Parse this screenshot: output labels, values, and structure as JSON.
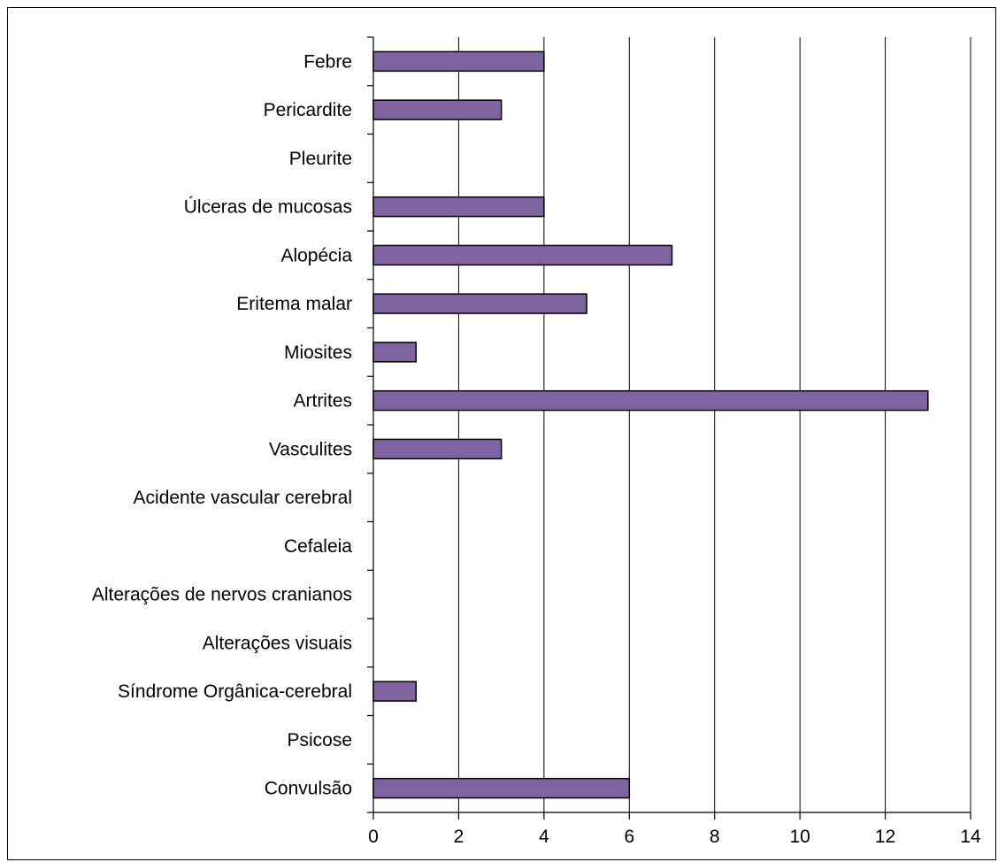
{
  "chart_data": {
    "type": "bar",
    "orientation": "horizontal",
    "categories": [
      "Febre",
      "Pericardite",
      "Pleurite",
      "Úlceras de mucosas",
      "Alopécia",
      "Eritema malar",
      "Miosites",
      "Artrites",
      "Vasculites",
      "Acidente vascular cerebral",
      "Cefaleia",
      "Alterações de nervos cranianos",
      "Alterações visuais",
      "Síndrome Orgânica-cerebral",
      "Psicose",
      "Convulsão"
    ],
    "values": [
      4,
      3,
      0,
      4,
      7,
      5,
      1,
      13,
      3,
      0,
      0,
      0,
      0,
      1,
      0,
      6
    ],
    "xlim": [
      0,
      14
    ],
    "xticks": [
      0,
      2,
      4,
      6,
      8,
      10,
      12,
      14
    ],
    "xtick_labels": [
      "0",
      "2",
      "4",
      "6",
      "8",
      "10",
      "12",
      "14"
    ],
    "title": "",
    "xlabel": "",
    "ylabel": "",
    "grid": "vertical",
    "legend": "none",
    "bar_color": "#8064A2",
    "bar_edge_color": "#000000"
  }
}
